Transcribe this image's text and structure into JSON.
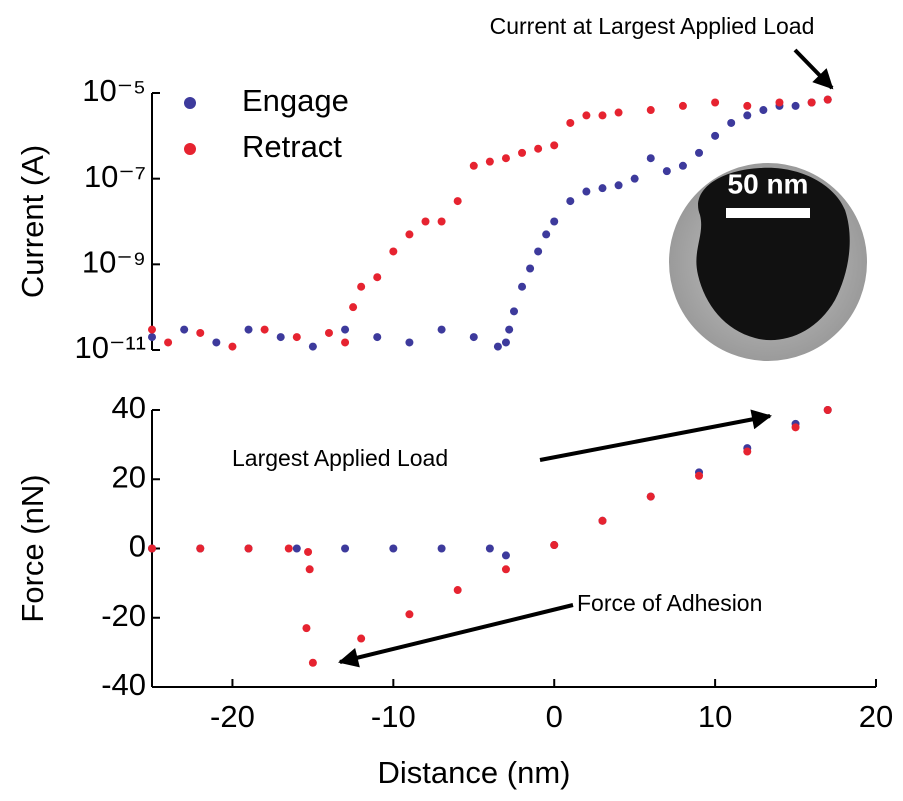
{
  "chart_data": [
    {
      "type": "scatter",
      "ylabel": "Current (A)",
      "yscale": "log",
      "xlim": [
        -25,
        20
      ],
      "ylim": [
        1e-11,
        1e-05
      ],
      "yticks": [
        {
          "value": 1e-11,
          "label": "10⁻¹¹"
        },
        {
          "value": 1e-09,
          "label": "10⁻⁹"
        },
        {
          "value": 1e-07,
          "label": "10⁻⁷"
        },
        {
          "value": 1e-05,
          "label": "10⁻⁵"
        }
      ],
      "legend": "upper left",
      "inset_label": "50 nm",
      "annotations": [
        "Current at Largest Applied Load"
      ],
      "series": [
        {
          "name": "Engage",
          "color": "#3d3a9c",
          "x": [
            -25,
            -23,
            -21,
            -19,
            -17,
            -15,
            -13,
            -11,
            -9,
            -7,
            -5,
            -3.5,
            -3,
            -2.8,
            -2.5,
            -2,
            -1.5,
            -1,
            -0.5,
            0,
            1,
            2,
            3,
            4,
            5,
            6,
            7,
            8,
            9,
            10,
            11,
            12,
            13,
            14,
            15,
            16,
            17
          ],
          "values": [
            2e-11,
            3e-11,
            1.5e-11,
            3e-11,
            2e-11,
            1.2e-11,
            3e-11,
            2e-11,
            1.5e-11,
            3e-11,
            2e-11,
            1.2e-11,
            1.5e-11,
            3e-11,
            8e-11,
            3e-10,
            8e-10,
            2e-09,
            5e-09,
            1e-08,
            3e-08,
            5e-08,
            6e-08,
            7e-08,
            1e-07,
            3e-07,
            1.5e-07,
            2e-07,
            4e-07,
            1e-06,
            2e-06,
            3e-06,
            4e-06,
            5e-06,
            5e-06,
            6e-06,
            7e-06
          ]
        },
        {
          "name": "Retract",
          "color": "#e62330",
          "x": [
            -25,
            -24,
            -22,
            -20,
            -18,
            -16,
            -14,
            -13,
            -12.5,
            -12,
            -11,
            -10,
            -9,
            -8,
            -7,
            -6,
            -5,
            -4,
            -3,
            -2,
            -1,
            0,
            1,
            2,
            3,
            4,
            6,
            8,
            10,
            12,
            14,
            16,
            17
          ],
          "values": [
            3e-11,
            1.5e-11,
            2.5e-11,
            1.2e-11,
            3e-11,
            2e-11,
            2.5e-11,
            1.5e-11,
            1e-10,
            3e-10,
            5e-10,
            2e-09,
            5e-09,
            1e-08,
            1e-08,
            3e-08,
            2e-07,
            2.5e-07,
            3e-07,
            4e-07,
            5e-07,
            6e-07,
            2e-06,
            3e-06,
            3e-06,
            3.5e-06,
            4e-06,
            5e-06,
            6e-06,
            5e-06,
            6e-06,
            6e-06,
            7e-06
          ]
        }
      ]
    },
    {
      "type": "scatter",
      "xlabel": "Distance (nm)",
      "ylabel": "Force (nN)",
      "xlim": [
        -25,
        20
      ],
      "ylim": [
        -40,
        40
      ],
      "xticks": [
        -20,
        -10,
        0,
        10,
        20
      ],
      "yticks": [
        -40,
        -20,
        0,
        20,
        40
      ],
      "annotations": [
        "Largest Applied Load",
        "Force of Adhesion"
      ],
      "series": [
        {
          "name": "Engage",
          "color": "#3d3a9c",
          "x": [
            -25,
            -22,
            -19,
            -16,
            -13,
            -10,
            -7,
            -4,
            -3,
            0,
            3,
            6,
            9,
            12,
            15,
            17
          ],
          "values": [
            0,
            0,
            0,
            0,
            0,
            0,
            0,
            0,
            -2,
            1,
            8,
            15,
            22,
            29,
            36,
            40
          ]
        },
        {
          "name": "Retract",
          "color": "#e62330",
          "x": [
            -25,
            -22,
            -19,
            -16.5,
            -15.3,
            -15.2,
            -15.4,
            -15,
            -12,
            -9,
            -6,
            -3,
            0,
            3,
            6,
            9,
            12,
            15,
            17
          ],
          "values": [
            0,
            0,
            0,
            0,
            -1,
            -6,
            -23,
            -33,
            -26,
            -19,
            -12,
            -6,
            1,
            8,
            15,
            21,
            28,
            35,
            40
          ]
        }
      ]
    }
  ]
}
